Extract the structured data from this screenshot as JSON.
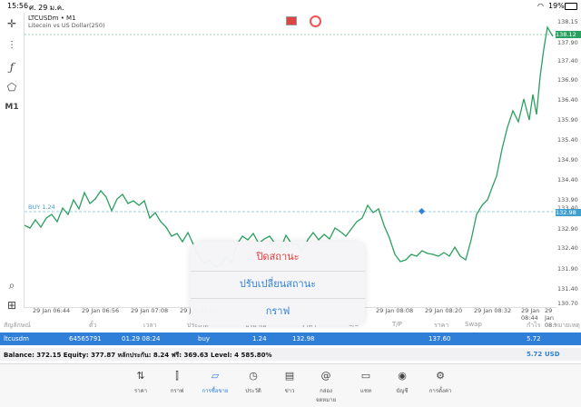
{
  "status": {
    "time": "15:56",
    "date": "ศ. 29 ม.ค.",
    "battery": "19%"
  },
  "symbol": {
    "name": "LTCUSDm • M1",
    "description": "Litecoin vs US Dollar(250)"
  },
  "price_axis": {
    "ticks": [
      "138.15",
      "137.90",
      "137.65",
      "137.40",
      "137.15",
      "136.90",
      "136.65",
      "136.40",
      "136.15",
      "135.90",
      "135.65",
      "135.40",
      "135.15",
      "134.90",
      "134.65",
      "134.40",
      "134.15",
      "133.90",
      "133.65",
      "133.40",
      "133.15",
      "132.90",
      "132.65",
      "132.40",
      "132.15",
      "131.90",
      "131.65",
      "131.40",
      "131.15",
      "130.90",
      "130.70"
    ],
    "shown": [
      "138.15",
      "137.90",
      "137.40",
      "136.90",
      "136.40",
      "135.90",
      "135.40",
      "134.90",
      "134.40",
      "133.90",
      "133.40",
      "132.98",
      "132.90",
      "132.40",
      "131.90",
      "131.40",
      "130.70"
    ],
    "current_price": "138.12",
    "buy_price": "132.98"
  },
  "time_axis": [
    "29 Jan 06:44",
    "29 Jan 06:56",
    "29 Jan 07:08",
    "29 Jan 07:20",
    "29 Jan 08:08",
    "29 Jan 08:20",
    "29 Jan 08:32",
    "29 Jan 08:44",
    "29 Jan 08:5"
  ],
  "buy_label": "BUY 1.24",
  "table": {
    "headers": [
      "สัญลักษณ์",
      "ตั๋ว",
      "เวลา",
      "ประเภท",
      "ปริมาณ",
      "ราคา",
      "S/L",
      "T/P",
      "ราคา",
      "Swap",
      "กำไร",
      "หมายเหตุ"
    ],
    "row": {
      "symbol": "ltcusdm",
      "ticket": "64565791",
      "time": "01.29 08:24",
      "type": "buy",
      "volume": "1.24",
      "price": "132.98",
      "price2": "137.60",
      "profit": "5.72"
    },
    "balance": "Balance: 372.15 Equity: 377.87 หลักประกัน: 8.24 ฟรี: 369.63 Level: 4 585.80%",
    "balance_value": "5.72",
    "currency": "USD"
  },
  "popup": {
    "close": "ปิดสถานะ",
    "modify": "ปรับเปลี่ยนสถานะ",
    "chart": "กราฟ"
  },
  "nav": [
    "ราคา",
    "กราฟ",
    "การซื้อขาย",
    "ประวัติ",
    "ข่าว",
    "กล่องจดหมาย",
    "แชท",
    "บัญชี",
    "การตั้งค่า"
  ],
  "tools": {
    "m1": "M1"
  },
  "colors": {
    "line": "#2aa060",
    "accent": "#2f7fd8",
    "close_red": "#e23b3b"
  }
}
